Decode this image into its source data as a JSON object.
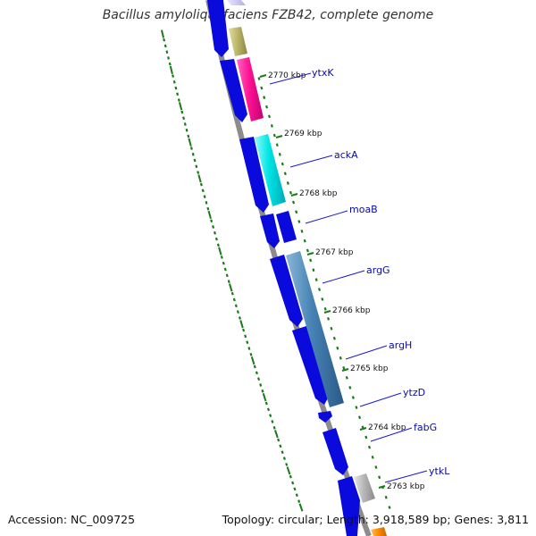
{
  "title": "Bacillus amyloliquefaciens FZB42, complete genome",
  "accession_text": "Accession: NC_009725",
  "summary_text": "Topology: circular; Length: 3,918,589 bp; Genes: 3,811",
  "colors": {
    "backbone": "#8c8c8c",
    "gene_blue": "#0a0adc",
    "label_line": "#1a1ad0",
    "tick_green": "#1a7a1a",
    "ytxK_feature": "#ff1493",
    "ackA_feature": "#00e5e5",
    "argG_feature": "#4682b4",
    "top_feature": "#bdb76b",
    "ytkL_feature": "#b0b0b0",
    "bottom_feature": "#ff8c00"
  },
  "kbp_ticks": [
    {
      "label": "2770 kbp"
    },
    {
      "label": "2769 kbp"
    },
    {
      "label": "2768 kbp"
    },
    {
      "label": "2767 kbp"
    },
    {
      "label": "2766 kbp"
    },
    {
      "label": "2765 kbp"
    },
    {
      "label": "2764 kbp"
    },
    {
      "label": "2763 kbp"
    }
  ],
  "gene_labels": [
    {
      "name": "ytxK"
    },
    {
      "name": "ackA"
    },
    {
      "name": "moaB"
    },
    {
      "name": "argG"
    },
    {
      "name": "argH"
    },
    {
      "name": "ytzD"
    },
    {
      "name": "fabG"
    },
    {
      "name": "ytkL"
    }
  ]
}
